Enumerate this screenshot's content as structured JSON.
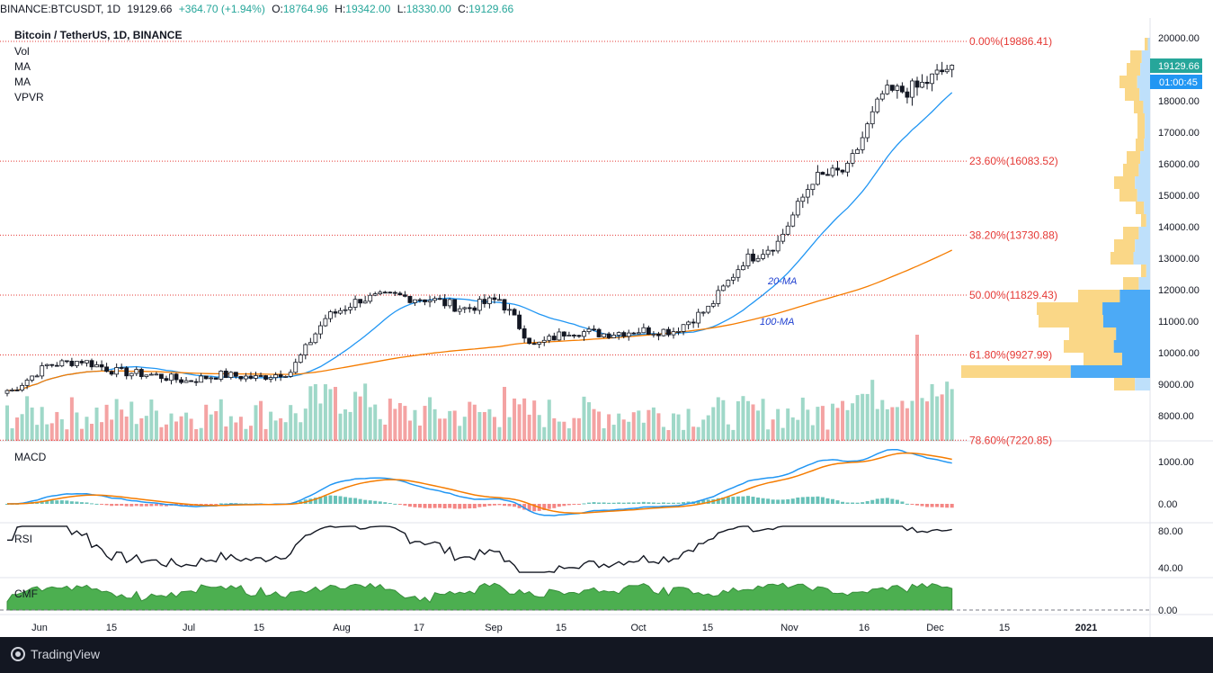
{
  "header": {
    "symbol": "BINANCE:BTCUSDT, 1D",
    "close": "19129.66",
    "change": "+364.70 (+1.94%)",
    "open_label": "O:",
    "open": "18764.96",
    "high_label": "H:",
    "high": "19342.00",
    "low_label": "L:",
    "low": "18330.00",
    "close_label": "C:",
    "close_value": "19129.66"
  },
  "legend": {
    "title": "Bitcoin / TetherUS, 1D, BINANCE",
    "items": [
      "Vol",
      "MA",
      "MA",
      "VPVR"
    ]
  },
  "price_tag": {
    "price": "19129.66",
    "countdown": "01:00:45"
  },
  "annotations": {
    "ma20": "20-MA",
    "ma100": "100-MA"
  },
  "fib_levels": [
    {
      "label": "0.00%(19886.41)",
      "value": 19886.41
    },
    {
      "label": "23.60%(16083.52)",
      "value": 16083.52
    },
    {
      "label": "38.20%(13730.88)",
      "value": 13730.88
    },
    {
      "label": "50.00%(11829.43)",
      "value": 11829.43
    },
    {
      "label": "61.80%(9927.99)",
      "value": 9927.99
    },
    {
      "label": "78.60%(7220.85)",
      "value": 7220.85
    }
  ],
  "panes": {
    "macd": {
      "label": "MACD",
      "ticks": [
        "1000.00",
        "0.00"
      ]
    },
    "rsi": {
      "label": "RSI",
      "ticks": [
        "80.00",
        "40.00"
      ]
    },
    "cmf": {
      "label": "CMF",
      "ticks": [
        "0.00"
      ]
    }
  },
  "x_ticks": [
    "Jun",
    "15",
    "Jul",
    "15",
    "Aug",
    "17",
    "Sep",
    "15",
    "Oct",
    "15",
    "Nov",
    "16",
    "Dec",
    "15",
    "2021"
  ],
  "footer": {
    "brand": "TradingView"
  },
  "colors": {
    "up": "#26a69a",
    "down": "#ef5350",
    "fib": "#e53935",
    "ma20": "#2196f3",
    "ma100": "#f57c00",
    "rsi": "#131722",
    "cmf": "#4caf50",
    "vol_up": "#9fd8c8",
    "vol_down": "#f4a3a3"
  },
  "chart_data": {
    "type": "candlestick",
    "title": "Bitcoin / TetherUS, 1D, BINANCE",
    "ylim": [
      7500,
      20300
    ],
    "y_ticks": [
      20000,
      19000,
      18000,
      17000,
      16000,
      15000,
      14000,
      13000,
      12000,
      11000,
      10000,
      9000,
      8000
    ],
    "x_ticks": [
      "Jun",
      "15",
      "Jul",
      "15",
      "Aug",
      "17",
      "Sep",
      "15",
      "Oct",
      "15",
      "Nov",
      "16",
      "Dec",
      "15",
      "2021"
    ],
    "weekly_close": [
      {
        "date": "2020-05-26",
        "close": 8800
      },
      {
        "date": "2020-06-02",
        "close": 9600
      },
      {
        "date": "2020-06-09",
        "close": 9750
      },
      {
        "date": "2020-06-16",
        "close": 9400
      },
      {
        "date": "2020-06-23",
        "close": 9300
      },
      {
        "date": "2020-06-30",
        "close": 9100
      },
      {
        "date": "2020-07-07",
        "close": 9300
      },
      {
        "date": "2020-07-14",
        "close": 9200
      },
      {
        "date": "2020-07-21",
        "close": 9400
      },
      {
        "date": "2020-07-28",
        "close": 11100
      },
      {
        "date": "2020-08-04",
        "close": 11700
      },
      {
        "date": "2020-08-11",
        "close": 11800
      },
      {
        "date": "2020-08-18",
        "close": 11700
      },
      {
        "date": "2020-08-25",
        "close": 11400
      },
      {
        "date": "2020-09-01",
        "close": 11700
      },
      {
        "date": "2020-09-08",
        "close": 10200
      },
      {
        "date": "2020-09-15",
        "close": 10700
      },
      {
        "date": "2020-09-22",
        "close": 10600
      },
      {
        "date": "2020-09-29",
        "close": 10700
      },
      {
        "date": "2020-10-06",
        "close": 10700
      },
      {
        "date": "2020-10-13",
        "close": 11400
      },
      {
        "date": "2020-10-20",
        "close": 12900
      },
      {
        "date": "2020-10-27",
        "close": 13500
      },
      {
        "date": "2020-11-03",
        "close": 15500
      },
      {
        "date": "2020-11-10",
        "close": 15800
      },
      {
        "date": "2020-11-17",
        "close": 18200
      },
      {
        "date": "2020-11-24",
        "close": 18400
      },
      {
        "date": "2020-12-01",
        "close": 19129.66
      }
    ],
    "ma20_end": 17900,
    "ma100_end": 13050,
    "rsi_range": [
      35,
      85
    ],
    "macd_max": 1350
  }
}
